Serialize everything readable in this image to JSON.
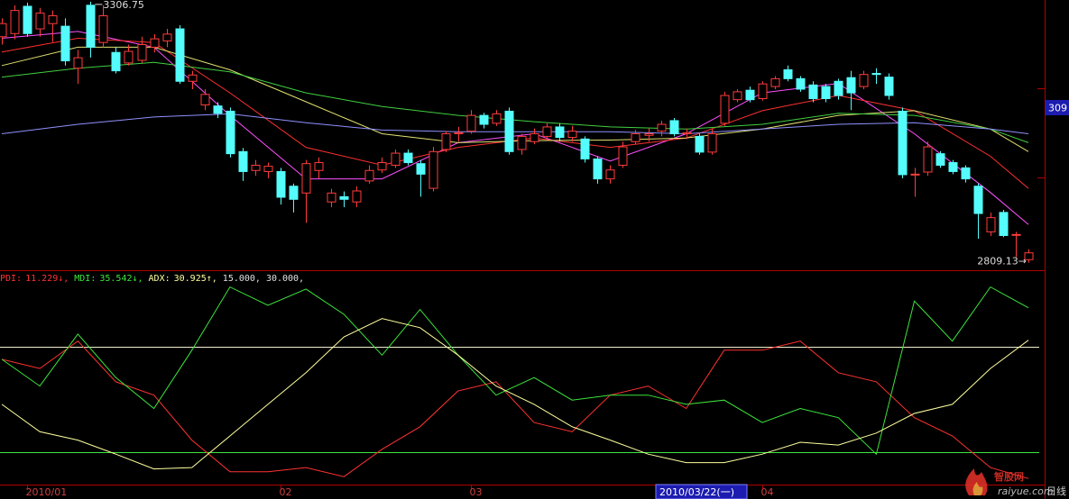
{
  "chart_data": [
    {
      "type": "candlestick",
      "categories": [
        null,
        null,
        "2010/01",
        null,
        null,
        null,
        null,
        null,
        null,
        null,
        null,
        null,
        null,
        null,
        null,
        null,
        null,
        null,
        null,
        null,
        null,
        null,
        "02",
        null,
        null,
        null,
        null,
        null,
        null,
        null,
        null,
        null,
        null,
        null,
        null,
        null,
        null,
        "03",
        null,
        null,
        null,
        null,
        null,
        null,
        null,
        null,
        null,
        null,
        null,
        null,
        null,
        null,
        null,
        null,
        null,
        null,
        null,
        null,
        null,
        null,
        "04",
        null,
        null,
        null,
        null,
        null,
        null,
        null,
        null,
        null,
        null,
        null,
        null,
        null,
        null,
        null,
        null,
        null,
        null,
        null,
        null,
        null
      ],
      "open": [
        3240,
        3246,
        3298,
        3255,
        3265,
        3260,
        3180,
        3300,
        3229,
        3210,
        3190,
        3195,
        3220,
        3232,
        3255,
        3155,
        3110,
        3108,
        3098,
        3021,
        2985,
        2983,
        2983,
        2955,
        2942,
        2985,
        2925,
        2935,
        2925,
        2965,
        2986,
        2995,
        3018,
        2998,
        2951,
        3025,
        3055,
        3060,
        3090,
        3075,
        3098,
        3025,
        3040,
        3050,
        3068,
        3048,
        3045,
        3007,
        2969,
        2995,
        3040,
        3052,
        3060,
        3080,
        3055,
        3050,
        3020,
        3075,
        3120,
        3138,
        3122,
        3145,
        3177,
        3160,
        3148,
        3145,
        3155,
        3162,
        3145,
        3170,
        3163,
        3098,
        2978,
        2982,
        3017,
        3000,
        2990,
        2955,
        2868,
        2905,
        2862,
        2815
      ],
      "high": [
        3275,
        3300,
        3305,
        3295,
        3290,
        3275,
        3215,
        3306.75,
        3300,
        3220,
        3225,
        3240,
        3245,
        3255,
        3262,
        3175,
        3140,
        3115,
        3105,
        3028,
        3005,
        3000,
        2990,
        2960,
        3005,
        3010,
        2950,
        2945,
        2955,
        2995,
        3010,
        3025,
        3025,
        3005,
        3030,
        3060,
        3068,
        3100,
        3095,
        3100,
        3105,
        3055,
        3065,
        3075,
        3075,
        3070,
        3050,
        3012,
        2995,
        3040,
        3062,
        3065,
        3080,
        3085,
        3065,
        3055,
        3065,
        3135,
        3140,
        3145,
        3155,
        3165,
        3185,
        3165,
        3155,
        3150,
        3160,
        3175,
        3175,
        3180,
        3170,
        3105,
        2990,
        3040,
        3022,
        3005,
        2995,
        2960,
        2905,
        2910,
        2868,
        2835
      ],
      "low": [
        3225,
        3235,
        3240,
        3240,
        3230,
        3185,
        3150,
        3200,
        3220,
        3170,
        3185,
        3190,
        3210,
        3220,
        3150,
        3140,
        3100,
        3085,
        3010,
        2965,
        2975,
        2970,
        2920,
        2905,
        2885,
        2970,
        2915,
        2915,
        2915,
        2960,
        2980,
        2990,
        2995,
        2935,
        2945,
        3020,
        3040,
        3055,
        3065,
        3070,
        3015,
        3015,
        3035,
        3045,
        3040,
        3040,
        3000,
        2960,
        2960,
        2990,
        3035,
        3040,
        3050,
        3050,
        3045,
        3015,
        3015,
        3070,
        3115,
        3115,
        3118,
        3140,
        3155,
        3135,
        3115,
        3115,
        3120,
        3100,
        3140,
        3150,
        3120,
        2970,
        2935,
        2975,
        2990,
        2978,
        2962,
        2855,
        2860,
        2858,
        2820,
        2809.13
      ],
      "close": [
        3265,
        3290,
        3246,
        3285,
        3280,
        3194,
        3200,
        3220,
        3280,
        3175,
        3212,
        3225,
        3236,
        3245,
        3155,
        3167,
        3130,
        3094,
        3017,
        2983,
        2995,
        2993,
        2934,
        2930,
        2998,
        3000,
        2942,
        2930,
        2946,
        2985,
        3000,
        3018,
        3000,
        2978,
        3021,
        3055,
        3057,
        3090,
        3073,
        3093,
        3021,
        3050,
        3055,
        3068,
        3048,
        3060,
        3007,
        2969,
        2986,
        3030,
        3055,
        3055,
        3073,
        3055,
        3057,
        3020,
        3055,
        3128,
        3135,
        3120,
        3150,
        3160,
        3160,
        3140,
        3122,
        3122,
        3128,
        3133,
        3168,
        3168,
        3128,
        2977,
        2978,
        3030,
        2995,
        2983,
        2969,
        2903,
        2895,
        2861,
        2863,
        2828
      ],
      "up_color": "#ff3c3c",
      "down_color": "#54fcfc",
      "ylim": [
        2800,
        3310
      ],
      "yticks": [
        2972,
        3142
      ],
      "high_label": 3306.75,
      "low_label": {
        "value": 2809.13,
        "label": "2809.13→"
      },
      "ma": {
        "x": [
          0,
          6,
          12,
          18,
          24,
          30,
          36,
          42,
          48,
          54,
          60,
          66,
          72,
          78,
          81
        ],
        "series": [
          {
            "color": "#ff50ff",
            "values": [
              3237,
              3250,
              3220,
              3090,
              2969,
              2969,
              3038,
              3055,
              3003,
              3055,
              3133,
              3151,
              3055,
              2943,
              2882
            ]
          },
          {
            "color": "#ff3030",
            "values": [
              3211,
              3237,
              3229,
              3133,
              3029,
              2995,
              3029,
              3047,
              3029,
              3047,
              3099,
              3128,
              3099,
              3012,
              2951
            ]
          },
          {
            "color": "#e0e070",
            "values": [
              3185,
              3220,
              3220,
              3177,
              3116,
              3055,
              3038,
              3042,
              3043,
              3047,
              3064,
              3090,
              3099,
              3064,
              3021
            ]
          },
          {
            "color": "#40d040",
            "values": [
              3163,
              3180,
              3191,
              3173,
              3133,
              3107,
              3090,
              3078,
              3068,
              3064,
              3073,
              3094,
              3090,
              3064,
              3038
            ]
          },
          {
            "color": "#9090ff",
            "values": [
              3055,
              3073,
              3087,
              3093,
              3076,
              3062,
              3059,
              3059,
              3059,
              3055,
              3064,
              3073,
              3076,
              3064,
              3055
            ]
          }
        ]
      },
      "price_tag": "309",
      "cursor_label": "2010/03/22(一)",
      "period_label": "日线",
      "watermark": {
        "title": "智股网",
        "url": "raiyue.com"
      }
    },
    {
      "type": "line",
      "x": [
        0,
        3,
        6,
        9,
        12,
        15,
        18,
        21,
        24,
        27,
        30,
        33,
        36,
        39,
        42,
        45,
        48,
        51,
        54,
        57,
        60,
        63,
        66,
        69,
        72,
        75,
        78,
        81
      ],
      "xlim": [
        0,
        81
      ],
      "ylim": [
        10.5,
        40.5
      ],
      "series": [
        {
          "name": "PDI:",
          "value_label": "11.229↓,",
          "color": "#ff3232",
          "values": [
            28.2,
            26.9,
            30.8,
            25.0,
            23.1,
            16.7,
            12.2,
            12.2,
            12.8,
            11.5,
            15.4,
            18.6,
            23.7,
            25.0,
            19.2,
            17.9,
            23.1,
            24.4,
            21.2,
            29.5,
            29.5,
            30.8,
            26.3,
            25.0,
            19.9,
            17.3,
            12.8,
            11.229
          ]
        },
        {
          "name": "MDI:",
          "value_label": "35.542↓,",
          "color": "#3ce63c",
          "values": [
            28.2,
            24.4,
            31.8,
            25.6,
            21.2,
            29.5,
            38.5,
            35.9,
            38.2,
            34.6,
            28.8,
            35.3,
            28.8,
            23.1,
            25.6,
            22.4,
            23.1,
            23.1,
            21.8,
            22.4,
            19.2,
            21.2,
            19.9,
            14.7,
            36.5,
            30.8,
            38.5,
            35.542
          ]
        },
        {
          "name": "ADX:",
          "value_label": "30.925↑,",
          "color": "#ffffa0",
          "values": [
            21.8,
            17.9,
            16.7,
            14.7,
            12.6,
            12.8,
            17.3,
            21.8,
            26.3,
            31.4,
            34.0,
            32.7,
            28.8,
            24.4,
            21.8,
            18.6,
            16.7,
            14.7,
            13.5,
            13.5,
            14.7,
            16.4,
            16.0,
            17.7,
            20.5,
            21.8,
            26.9,
            30.925
          ]
        }
      ],
      "reference_lines": [
        {
          "value": 15,
          "label": "15.000,",
          "color": "#3ce63c"
        },
        {
          "value": 30,
          "label": "30.000,",
          "color": "#f0f0d0"
        }
      ]
    }
  ]
}
